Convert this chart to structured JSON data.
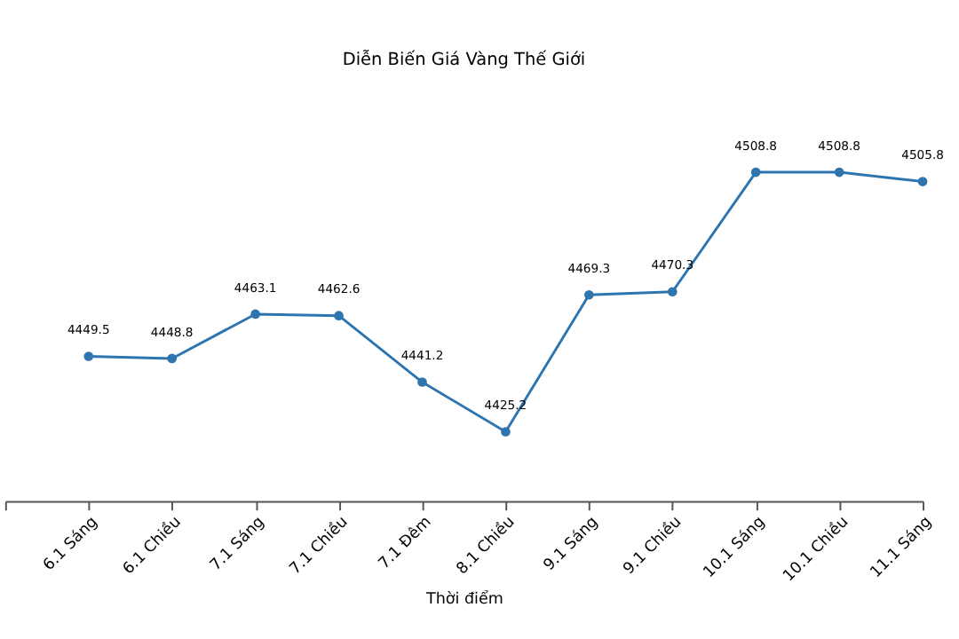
{
  "chart_data": {
    "type": "line",
    "title": "Diễn Biến Giá Vàng Thế Giới",
    "xlabel": "Thời điểm",
    "categories": [
      null,
      "6.1 Sáng",
      "6.1 Chiều",
      "7.1 Sáng",
      "7.1 Chiều",
      "7.1 Đêm",
      "8.1 Chiều",
      "9.1 Sáng",
      "9.1 Chiều",
      "10.1 Sáng",
      "10.1 Chiều",
      "11.1 Sáng"
    ],
    "series": [
      {
        "color": "#2e75b0",
        "values": [
          null,
          4449.5,
          4448.8,
          4463.1,
          4462.6,
          4441.2,
          4425.2,
          4469.3,
          4470.3,
          4508.8,
          4508.8,
          4505.8
        ]
      }
    ],
    "data_labels": true,
    "marker": "circle",
    "line_style": "solid",
    "grid": false,
    "legend": false,
    "tick_labels": "x"
  }
}
